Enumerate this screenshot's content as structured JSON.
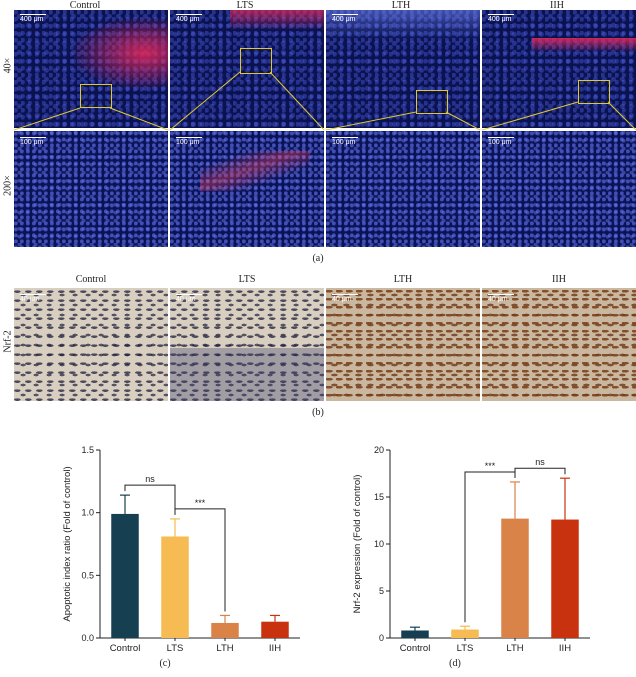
{
  "panel_a": {
    "columns": [
      "Control",
      "LTS",
      "LTH",
      "IIH"
    ],
    "rows": [
      "40×",
      "200×"
    ],
    "scale_top": "400 μm",
    "scale_bottom": "100 μm",
    "label": "(a)"
  },
  "panel_b": {
    "columns": [
      "Control",
      "LTS",
      "LTH",
      "IIH"
    ],
    "row_label": "Nrf-2",
    "scale": "40 μm",
    "label": "(b)"
  },
  "colors": {
    "Control": "#163f52",
    "LTS": "#f6bb52",
    "LTH": "#d98348",
    "IIH": "#c8320f"
  },
  "chart_data": [
    {
      "type": "bar",
      "label": "(c)",
      "categories": [
        "Control",
        "LTS",
        "LTH",
        "IIH"
      ],
      "values": [
        0.99,
        0.81,
        0.12,
        0.13
      ],
      "errors": [
        0.15,
        0.14,
        0.06,
        0.05
      ],
      "ylabel": "Apoptotic index ratio (Fold of control)",
      "xlabel": "",
      "ylim": [
        0,
        1.5
      ],
      "yticks": [
        "0.0",
        "0.5",
        "1.0",
        "1.5"
      ],
      "significance": [
        {
          "from": "Control",
          "to": "LTS",
          "text": "ns"
        },
        {
          "from": "LTS",
          "to": "LTH",
          "text": "***"
        }
      ]
    },
    {
      "type": "bar",
      "label": "(d)",
      "categories": [
        "Control",
        "LTS",
        "LTH",
        "IIH"
      ],
      "values": [
        0.8,
        0.9,
        12.7,
        12.6
      ],
      "errors": [
        0.35,
        0.35,
        3.9,
        4.4
      ],
      "ylabel": "Nrf-2 expression (Fold of control)",
      "xlabel": "",
      "ylim": [
        0,
        20
      ],
      "yticks": [
        "0",
        "5",
        "10",
        "15",
        "20"
      ],
      "significance": [
        {
          "from": "LTS",
          "to": "LTH",
          "text": "***"
        },
        {
          "from": "LTH",
          "to": "IIH",
          "text": "ns"
        }
      ]
    }
  ]
}
